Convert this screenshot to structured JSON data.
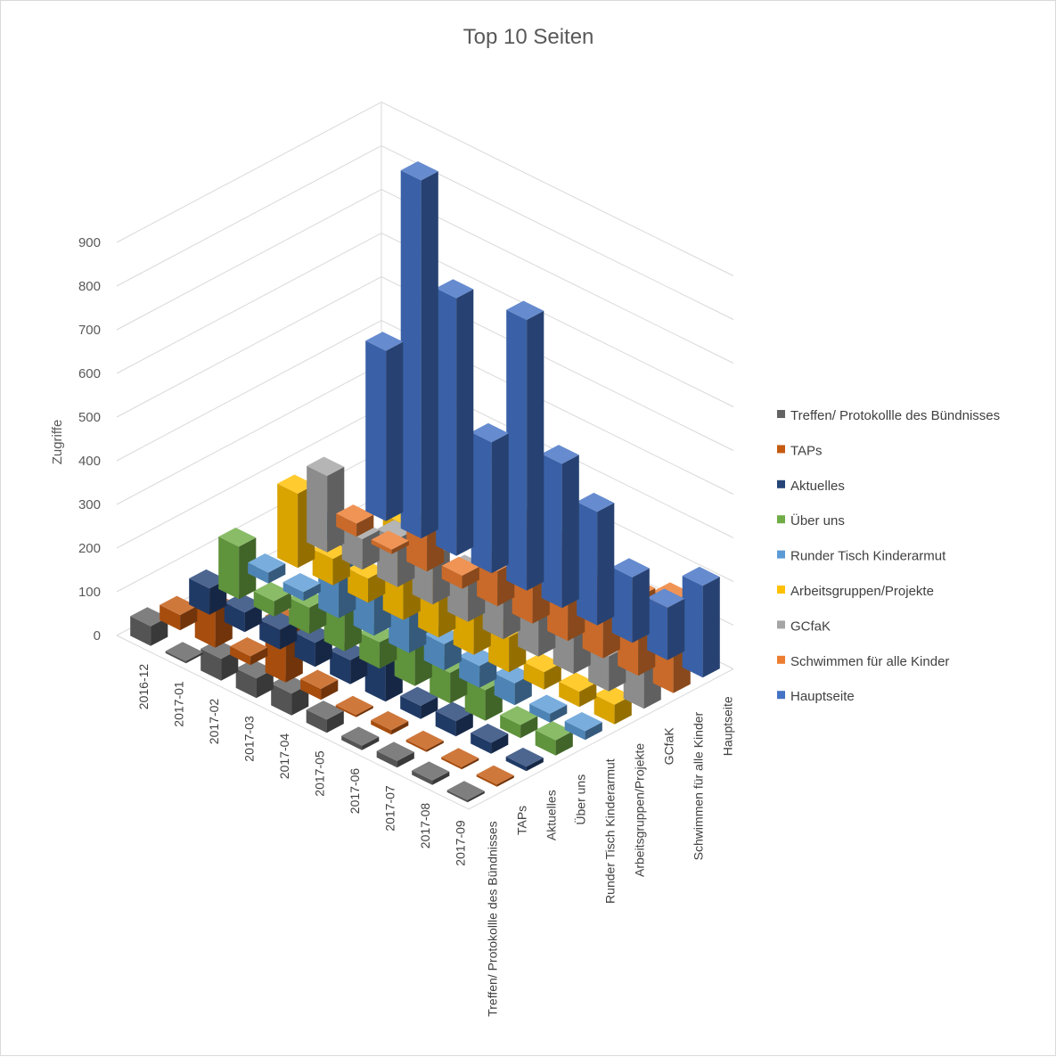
{
  "chart_data": {
    "type": "bar",
    "variant": "3d-column",
    "title": "Top 10 Seiten",
    "ylabel": "Zugriffe",
    "ylim": [
      0,
      900
    ],
    "yticks": [
      0,
      100,
      200,
      300,
      400,
      500,
      600,
      700,
      800,
      900
    ],
    "grid": true,
    "legend_position": "right",
    "months": [
      "2016-12",
      "2017-01",
      "2017-02",
      "2017-03",
      "2017-04",
      "2017-05",
      "2017-06",
      "2017-07",
      "2017-08",
      "2017-09"
    ],
    "series": [
      {
        "name": "Treffen/ Protokollle des Bündnisses",
        "axis_label": "Treffen/ Protokollle des Bündnisses",
        "color": "#636363",
        "values": [
          45,
          5,
          50,
          45,
          50,
          30,
          10,
          15,
          10,
          5
        ]
      },
      {
        "name": "TAPs",
        "axis_label": "TAPs",
        "color": "#c55a11",
        "values": [
          35,
          85,
          20,
          130,
          25,
          5,
          10,
          5,
          5,
          5
        ]
      },
      {
        "name": "Aktuelles",
        "axis_label": "Aktuelles",
        "color": "#264478",
        "values": [
          60,
          45,
          45,
          55,
          55,
          100,
          30,
          35,
          25,
          10
        ]
      },
      {
        "name": "Über uns",
        "axis_label": "Über uns",
        "color": "#70ad47",
        "values": [
          120,
          35,
          60,
          135,
          60,
          130,
          70,
          70,
          30,
          35
        ]
      },
      {
        "name": "Runder Tisch Kinderarmut",
        "axis_label": "Runder Tisch Kinderarmut",
        "color": "#5b9bd5",
        "values": [
          25,
          20,
          210,
          100,
          180,
          60,
          50,
          50,
          20,
          20
        ]
      },
      {
        "name": "Arbeitsgruppen/Projekte",
        "axis_label": "Arbeitsgruppen/Projekte",
        "color": "#ffc000",
        "values": [
          170,
          60,
          55,
          220,
          130,
          130,
          80,
          40,
          35,
          45
        ]
      },
      {
        "name": "GCfaK",
        "axis_label": "GCfaK",
        "color": "#a5a5a5",
        "values": [
          175,
          70,
          110,
          110,
          110,
          90,
          90,
          90,
          80,
          130
        ]
      },
      {
        "name": "Schwimmen für alle Kinder",
        "axis_label": "Schwimmen für alle Kinder",
        "color": "#ed7d31",
        "values": [
          30,
          10,
          90,
          30,
          80,
          220,
          210,
          150,
          180,
          210
        ]
      },
      {
        "name": "Hauptseite",
        "axis_label": "Hauptseite",
        "color": "#4472c4",
        "values": [
          390,
          820,
          590,
          300,
          620,
          330,
          260,
          150,
          120,
          210
        ]
      }
    ]
  }
}
